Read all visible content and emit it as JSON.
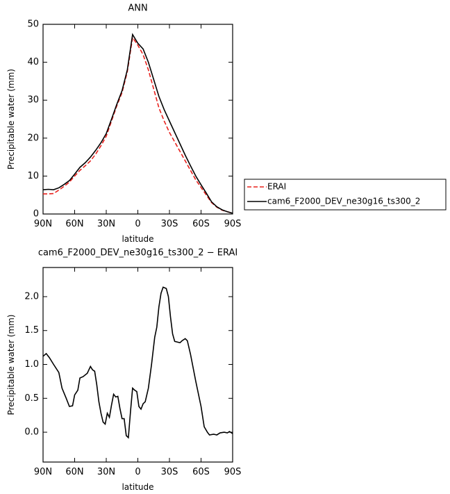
{
  "chart_data": [
    {
      "type": "line",
      "title": "ANN",
      "x_label": "latitude",
      "y_label": "Precipitable water (mm)",
      "x": [
        90,
        85,
        80,
        75,
        70,
        65,
        60,
        55,
        50,
        45,
        40,
        35,
        30,
        25,
        20,
        15,
        10,
        5,
        0,
        -5,
        -10,
        -15,
        -20,
        -25,
        -30,
        -35,
        -40,
        -45,
        -50,
        -55,
        -60,
        -65,
        -70,
        -75,
        -80,
        -85,
        -90
      ],
      "series": [
        {
          "name": "ERAI",
          "color": "#e8201c",
          "dash": true,
          "values": [
            5.3,
            5.3,
            5.4,
            6.3,
            7.3,
            8.4,
            10.0,
            11.5,
            12.7,
            14.0,
            15.8,
            18.0,
            20.5,
            24.5,
            28.5,
            32.0,
            37.5,
            46.5,
            44.5,
            42.0,
            38.0,
            33.0,
            28.0,
            24.5,
            21.5,
            19.0,
            16.5,
            14.0,
            11.5,
            9.0,
            7.0,
            5.0,
            3.0,
            1.8,
            1.0,
            0.6,
            0.2
          ]
        },
        {
          "name": "cam6_F2000_DEV_ne30g16_ts300_2",
          "color": "#000000",
          "dash": false,
          "values": [
            6.4,
            6.5,
            6.4,
            6.9,
            7.8,
            8.8,
            10.5,
            12.3,
            13.5,
            15.0,
            16.8,
            18.8,
            21.2,
            25.0,
            28.9,
            32.5,
            38.0,
            47.3,
            45.0,
            43.5,
            40.0,
            35.5,
            31.0,
            27.5,
            24.5,
            21.5,
            18.5,
            15.5,
            12.7,
            10.0,
            7.7,
            5.5,
            3.2,
            1.9,
            1.1,
            0.6,
            0.2
          ]
        }
      ],
      "xlim": [
        90,
        -90
      ],
      "xticks": [
        {
          "value": 90,
          "label": "90N"
        },
        {
          "value": 60,
          "label": "60N"
        },
        {
          "value": 30,
          "label": "30N"
        },
        0,
        {
          "value": -30,
          "label": "30S"
        },
        {
          "value": -60,
          "label": "60S"
        },
        {
          "value": -90,
          "label": "90S"
        }
      ],
      "ylim": [
        0,
        50
      ],
      "yticks": [
        0,
        10,
        20,
        30,
        40,
        50
      ],
      "legend": "outside-right"
    },
    {
      "type": "line",
      "title": "cam6_F2000_DEV_ne30g16_ts300_2 − ERAI",
      "x_label": "latitude",
      "y_label": "Precipitable water (mm)",
      "color": "#000000",
      "x": [
        90,
        87,
        84,
        80,
        75,
        72,
        68,
        65,
        62,
        60,
        57,
        55,
        52,
        48,
        45,
        43,
        41,
        39,
        37,
        35,
        33,
        31,
        29,
        27,
        25,
        23,
        21,
        19,
        17,
        15,
        13,
        11,
        9,
        7,
        5,
        3,
        1,
        -1,
        -3,
        -5,
        -7,
        -10,
        -13,
        -16,
        -18,
        -20,
        -22,
        -24,
        -27,
        -29,
        -31,
        -33,
        -35,
        -40,
        -42,
        -45,
        -47,
        -50,
        -55,
        -60,
        -63,
        -66,
        -68,
        -72,
        -75,
        -78,
        -82,
        -85,
        -87,
        -90
      ],
      "values": [
        1.12,
        1.16,
        1.1,
        1.0,
        0.88,
        0.65,
        0.5,
        0.38,
        0.39,
        0.55,
        0.62,
        0.8,
        0.82,
        0.87,
        0.97,
        0.92,
        0.9,
        0.7,
        0.45,
        0.28,
        0.15,
        0.12,
        0.28,
        0.22,
        0.4,
        0.56,
        0.52,
        0.53,
        0.35,
        0.2,
        0.2,
        -0.05,
        -0.08,
        0.3,
        0.65,
        0.62,
        0.6,
        0.38,
        0.34,
        0.42,
        0.45,
        0.65,
        1.0,
        1.4,
        1.55,
        1.85,
        2.05,
        2.14,
        2.12,
        2.0,
        1.7,
        1.45,
        1.34,
        1.32,
        1.35,
        1.38,
        1.35,
        1.15,
        0.75,
        0.38,
        0.08,
        0.0,
        -0.04,
        -0.03,
        -0.04,
        -0.01,
        0.0,
        -0.01,
        0.01,
        -0.02
      ],
      "xlim": [
        90,
        -90
      ],
      "xticks": [
        {
          "value": 90,
          "label": "90N"
        },
        {
          "value": 60,
          "label": "60N"
        },
        {
          "value": 30,
          "label": "30N"
        },
        0,
        {
          "value": -30,
          "label": "30S"
        },
        {
          "value": -60,
          "label": "60S"
        },
        {
          "value": -90,
          "label": "90S"
        }
      ],
      "ylim": [
        -0.44,
        2.43
      ],
      "yticks": [
        {
          "value": 0,
          "label": "0.0"
        },
        {
          "value": 0.5,
          "label": "0.5"
        },
        {
          "value": 1,
          "label": "1.0"
        },
        {
          "value": 1.5,
          "label": "1.5"
        },
        {
          "value": 2,
          "label": "2.0"
        }
      ]
    }
  ]
}
